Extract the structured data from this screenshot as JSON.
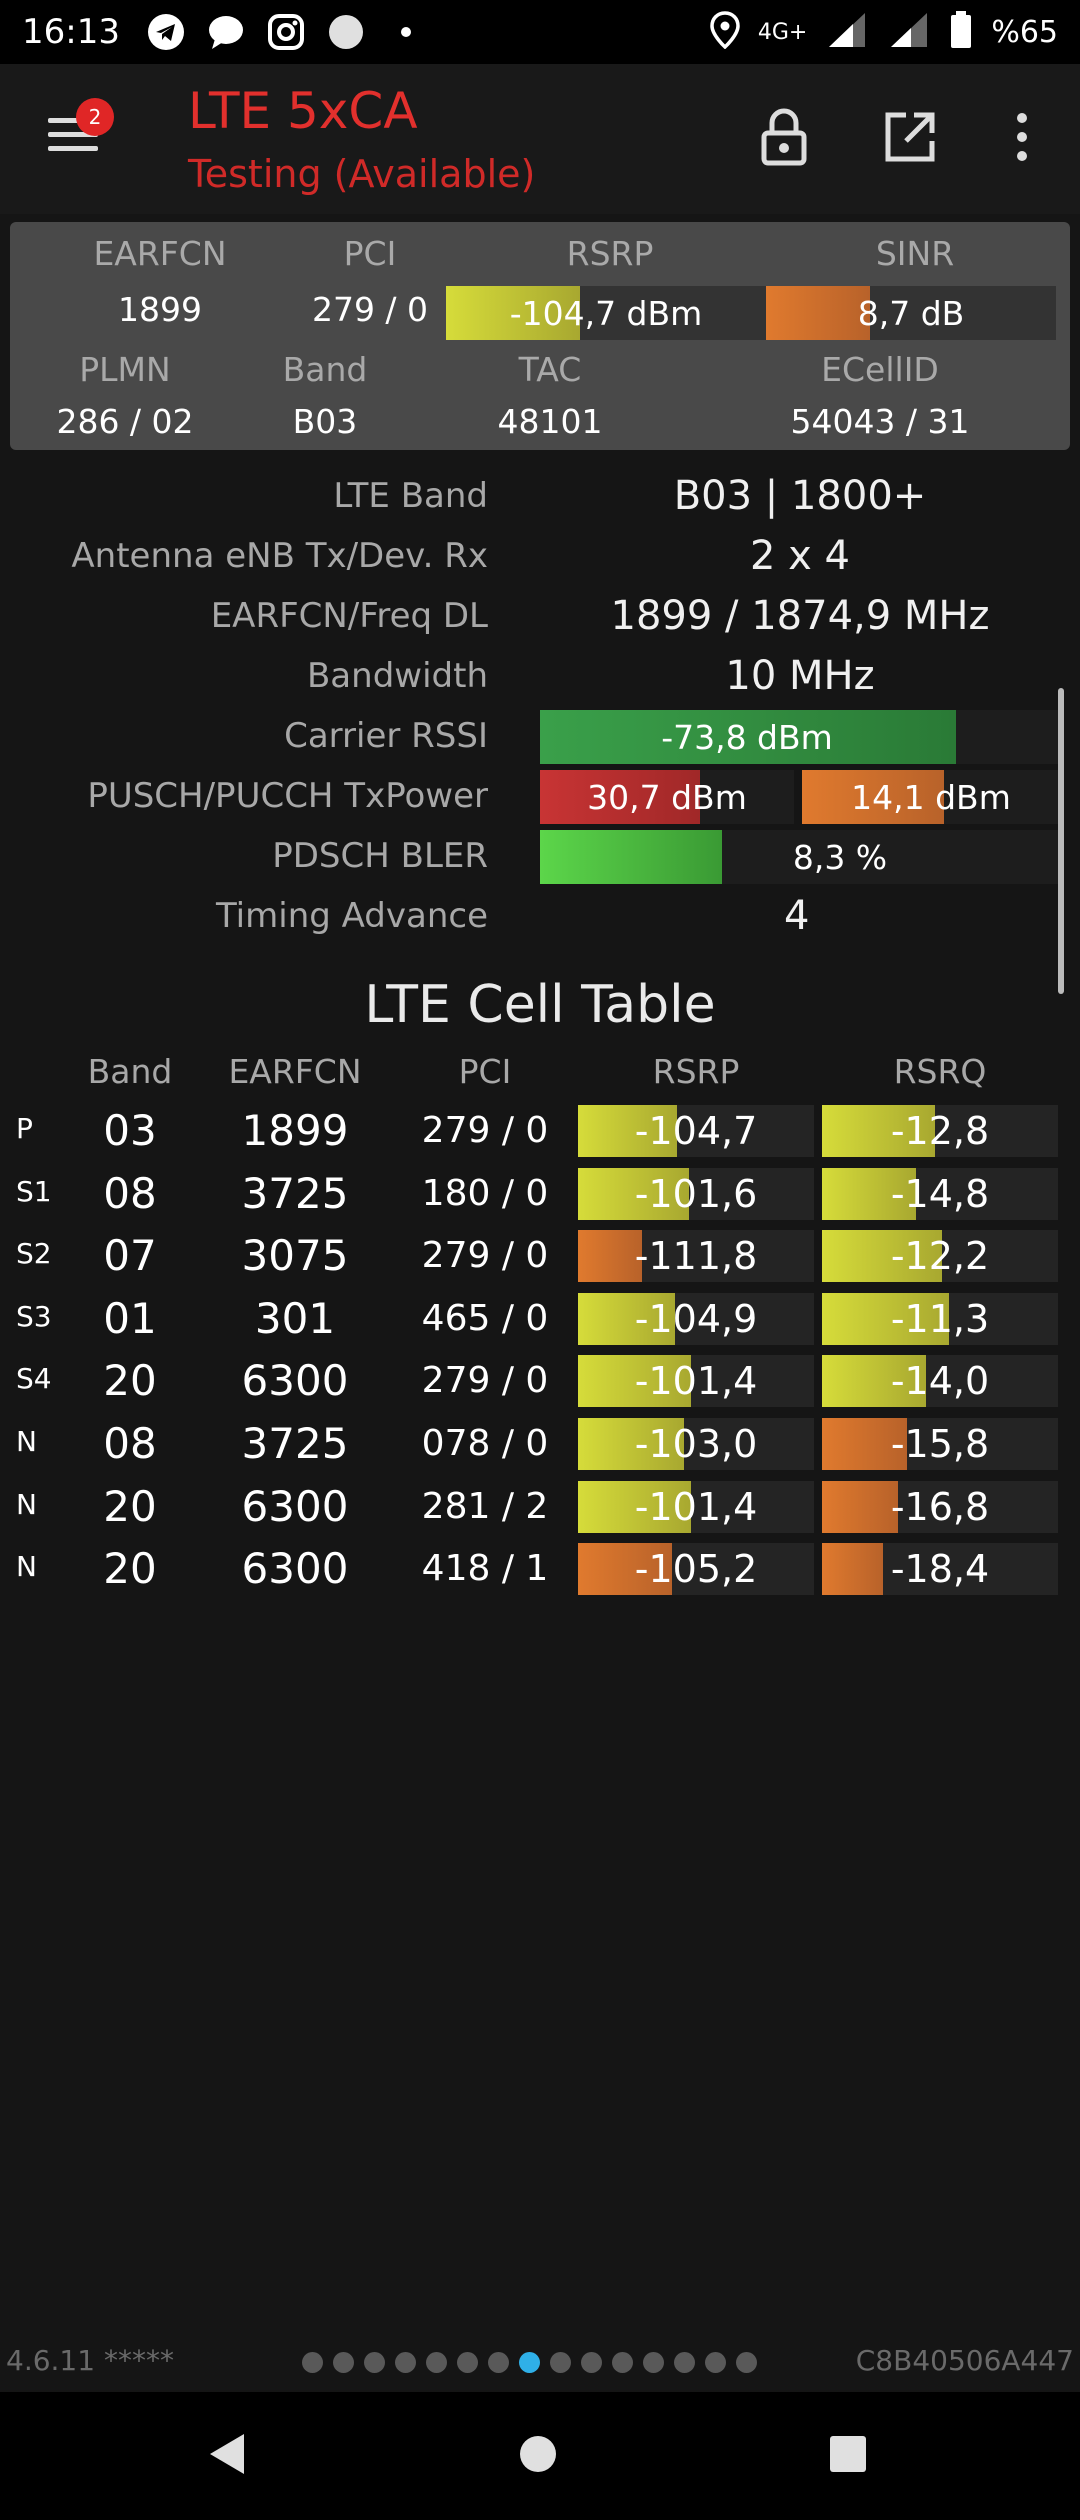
{
  "status_bar": {
    "time": "16:13",
    "network": "4G+",
    "battery": "%65",
    "icons": [
      "telegram-icon",
      "chat-icon",
      "instagram-icon",
      "circle-icon",
      "dot-icon",
      "location-icon",
      "signal-icon",
      "signal-icon",
      "battery-icon"
    ]
  },
  "app_bar": {
    "title": "LTE 5xCA",
    "subtitle": "Testing (Available)",
    "menu_badge": "2",
    "actions": [
      "lock-icon",
      "open-external-icon",
      "more-vert-icon"
    ]
  },
  "summary": {
    "headers": {
      "earfcn": "EARFCN",
      "pci": "PCI",
      "rsrp": "RSRP",
      "sinr": "SINR",
      "plmn": "PLMN",
      "band": "Band",
      "tac": "TAC",
      "ecellid": "ECellID"
    },
    "earfcn": "1899",
    "pci": "279 / 0",
    "rsrp": "-104,7 dBm",
    "rsrp_level": 0.42,
    "sinr": "8,7 dB",
    "sinr_level": 0.36,
    "plmn": "286 / 02",
    "band": "B03",
    "tac": "48101",
    "ecellid": "54043 / 31"
  },
  "details": {
    "lte_band": {
      "label": "LTE Band",
      "value": "B03 | 1800+"
    },
    "antenna": {
      "label": "Antenna eNB Tx/Dev. Rx",
      "value": "2 x 4"
    },
    "earfcn_freq": {
      "label": "EARFCN/Freq DL",
      "value": "1899 / 1874,9 MHz"
    },
    "bandwidth": {
      "label": "Bandwidth",
      "value": "10 MHz"
    },
    "rssi": {
      "label": "Carrier RSSI",
      "value": "-73,8 dBm",
      "level": 0.8
    },
    "txpower": {
      "label": "PUSCH/PUCCH TxPower",
      "pusch": "30,7 dBm",
      "pusch_level": 0.63,
      "pucch": "14,1 dBm",
      "pucch_level": 0.55
    },
    "bler": {
      "label": "PDSCH BLER",
      "value": "8,3 %",
      "level": 0.35
    },
    "timing_advance": {
      "label": "Timing Advance",
      "value": "4"
    }
  },
  "cell_table": {
    "title": "LTE Cell Table",
    "headers": {
      "band": "Band",
      "earfcn": "EARFCN",
      "pci": "PCI",
      "rsrp": "RSRP",
      "rsrq": "RSRQ"
    },
    "rows": [
      {
        "tag": "P",
        "band": "03",
        "earfcn": "1899",
        "pci": "279 / 0",
        "rsrp": "-104,7",
        "rsrp_level": 0.42,
        "rsrp_color": "yellow",
        "rsrq": "-12,8",
        "rsrq_level": 0.48,
        "rsrq_color": "yellow"
      },
      {
        "tag": "S1",
        "band": "08",
        "earfcn": "3725",
        "pci": "180 / 0",
        "rsrp": "-101,6",
        "rsrp_level": 0.47,
        "rsrp_color": "yellow",
        "rsrq": "-14,8",
        "rsrq_level": 0.4,
        "rsrq_color": "yellow"
      },
      {
        "tag": "S2",
        "band": "07",
        "earfcn": "3075",
        "pci": "279 / 0",
        "rsrp": "-111,8",
        "rsrp_level": 0.27,
        "rsrp_color": "orange",
        "rsrq": "-12,2",
        "rsrq_level": 0.51,
        "rsrq_color": "yellow"
      },
      {
        "tag": "S3",
        "band": "01",
        "earfcn": "301",
        "pci": "465 / 0",
        "rsrp": "-104,9",
        "rsrp_level": 0.41,
        "rsrp_color": "yellow",
        "rsrq": "-11,3",
        "rsrq_level": 0.54,
        "rsrq_color": "yellow"
      },
      {
        "tag": "S4",
        "band": "20",
        "earfcn": "6300",
        "pci": "279 / 0",
        "rsrp": "-101,4",
        "rsrp_level": 0.48,
        "rsrp_color": "yellow",
        "rsrq": "-14,0",
        "rsrq_level": 0.44,
        "rsrq_color": "yellow"
      },
      {
        "tag": "N",
        "band": "08",
        "earfcn": "3725",
        "pci": "078 / 0",
        "rsrp": "-103,0",
        "rsrp_level": 0.45,
        "rsrp_color": "yellow",
        "rsrq": "-15,8",
        "rsrq_level": 0.36,
        "rsrq_color": "orange"
      },
      {
        "tag": "N",
        "band": "20",
        "earfcn": "6300",
        "pci": "281 / 2",
        "rsrp": "-101,4",
        "rsrp_level": 0.48,
        "rsrp_color": "yellow",
        "rsrq": "-16,8",
        "rsrq_level": 0.32,
        "rsrq_color": "orange"
      },
      {
        "tag": "N",
        "band": "20",
        "earfcn": "6300",
        "pci": "418 / 1",
        "rsrp": "-105,2",
        "rsrp_level": 0.4,
        "rsrp_color": "orange",
        "rsrq": "-18,4",
        "rsrq_level": 0.26,
        "rsrq_color": "orange"
      }
    ]
  },
  "footer": {
    "version": "4.6.11 *****",
    "device_id": "C8B40506A447",
    "page_count": 15,
    "active_page": 8
  },
  "nav_bar": [
    "back-icon",
    "home-icon",
    "recents-icon"
  ]
}
